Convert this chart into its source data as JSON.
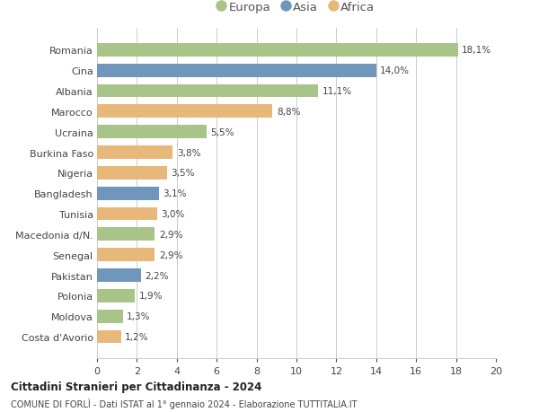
{
  "categories": [
    "Romania",
    "Cina",
    "Albania",
    "Marocco",
    "Ucraina",
    "Burkina Faso",
    "Nigeria",
    "Bangladesh",
    "Tunisia",
    "Macedonia d/N.",
    "Senegal",
    "Pakistan",
    "Polonia",
    "Moldova",
    "Costa d'Avorio"
  ],
  "values": [
    18.1,
    14.0,
    11.1,
    8.8,
    5.5,
    3.8,
    3.5,
    3.1,
    3.0,
    2.9,
    2.9,
    2.2,
    1.9,
    1.3,
    1.2
  ],
  "labels": [
    "18,1%",
    "14,0%",
    "11,1%",
    "8,8%",
    "5,5%",
    "3,8%",
    "3,5%",
    "3,1%",
    "3,0%",
    "2,9%",
    "2,9%",
    "2,2%",
    "1,9%",
    "1,3%",
    "1,2%"
  ],
  "continents": [
    "Europa",
    "Asia",
    "Europa",
    "Africa",
    "Europa",
    "Africa",
    "Africa",
    "Asia",
    "Africa",
    "Europa",
    "Africa",
    "Asia",
    "Europa",
    "Europa",
    "Africa"
  ],
  "colors": {
    "Europa": "#a8c488",
    "Asia": "#7097bb",
    "Africa": "#e8b87a"
  },
  "title1": "Cittadini Stranieri per Cittadinanza - 2024",
  "title2": "COMUNE DI FORLÌ - Dati ISTAT al 1° gennaio 2024 - Elaborazione TUTTITALIA.IT",
  "xlim": [
    0,
    20
  ],
  "xticks": [
    0,
    2,
    4,
    6,
    8,
    10,
    12,
    14,
    16,
    18,
    20
  ],
  "background_color": "#ffffff",
  "grid_color": "#cccccc"
}
